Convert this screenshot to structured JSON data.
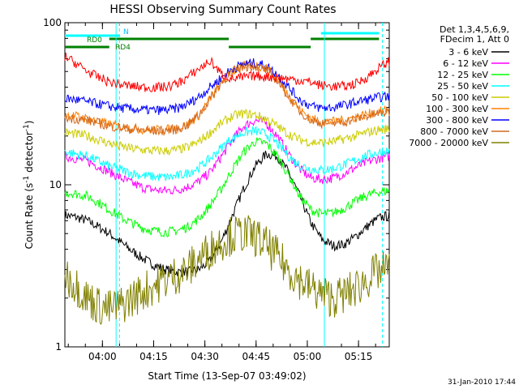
{
  "chart_data": {
    "type": "line",
    "title": "HESSI Observing Summary Count Rates",
    "xlabel": "Start Time (13-Sep-07 03:49:02)",
    "ylabel_main": "Count Rate (s",
    "ylabel_sup1": "-1",
    "ylabel_mid": " detector",
    "ylabel_sup2": "-1",
    "ylabel_end": ")",
    "yscale": "log",
    "ylim": [
      1,
      100
    ],
    "xlim_minutes": [
      0,
      95
    ],
    "x_ticks": [
      {
        "label": "04:00",
        "minute": 11
      },
      {
        "label": "04:15",
        "minute": 26
      },
      {
        "label": "04:30",
        "minute": 41
      },
      {
        "label": "04:45",
        "minute": 56
      },
      {
        "label": "05:00",
        "minute": 71
      },
      {
        "label": "05:15",
        "minute": 86
      }
    ],
    "y_tick_labels": [
      {
        "label": "1",
        "value": 1
      },
      {
        "label": "10",
        "value": 10
      },
      {
        "label": "100",
        "value": 100
      }
    ],
    "legend_header": [
      "Det 1,3,4,5,6,9,",
      "FDecim 1, Att 0"
    ],
    "legend_placement": "right",
    "series": [
      {
        "name": "3 - 6 keV",
        "color": "#000000",
        "values": [
          6.5,
          6.3,
          6.0,
          5.5,
          5.0,
          4.4,
          3.9,
          3.5,
          3.2,
          3.0,
          2.9,
          2.9,
          3.0,
          3.4,
          4.5,
          6.5,
          9.5,
          13.0,
          15.5,
          15.0,
          12.0,
          8.5,
          5.8,
          4.6,
          4.2,
          4.3,
          4.8,
          5.5,
          6.2,
          6.5
        ]
      },
      {
        "name": "6 - 12 keV",
        "color": "#ff00ff",
        "values": [
          15.0,
          14.5,
          14.0,
          13.0,
          12.0,
          11.0,
          10.2,
          9.6,
          9.3,
          9.2,
          9.3,
          9.7,
          10.5,
          12.0,
          15.0,
          19.0,
          23.0,
          25.0,
          24.0,
          20.0,
          15.5,
          12.5,
          11.0,
          10.8,
          11.0,
          11.8,
          12.8,
          13.8,
          14.5,
          15.0
        ]
      },
      {
        "name": "12 - 25 keV",
        "color": "#00ff00",
        "values": [
          9.0,
          8.8,
          8.5,
          7.8,
          7.0,
          6.3,
          5.8,
          5.4,
          5.2,
          5.1,
          5.2,
          5.5,
          6.2,
          7.5,
          9.5,
          12.5,
          16.0,
          18.5,
          18.0,
          15.0,
          11.5,
          8.5,
          7.0,
          6.6,
          6.7,
          7.2,
          7.9,
          8.6,
          9.0,
          9.2
        ]
      },
      {
        "name": "25 - 50 keV",
        "color": "#00ffff",
        "values": [
          16.0,
          15.5,
          15.0,
          14.0,
          13.0,
          12.3,
          11.8,
          11.4,
          11.2,
          11.1,
          11.3,
          11.8,
          12.8,
          14.5,
          17.0,
          19.5,
          21.0,
          21.5,
          20.5,
          18.0,
          15.0,
          13.2,
          12.5,
          12.3,
          12.6,
          13.3,
          14.2,
          15.2,
          15.8,
          16.2
        ]
      },
      {
        "name": "50 - 100 keV",
        "color": "#cccc00",
        "values": [
          21.0,
          20.5,
          20.0,
          19.0,
          18.0,
          17.2,
          16.7,
          16.4,
          16.2,
          16.2,
          16.4,
          17.0,
          18.5,
          21.0,
          24.0,
          26.5,
          27.5,
          27.0,
          25.5,
          23.0,
          20.5,
          19.0,
          18.3,
          18.2,
          18.5,
          19.2,
          20.0,
          21.0,
          21.8,
          22.2
        ]
      },
      {
        "name": "100 - 300 keV",
        "color": "#ff8000",
        "values": [
          27.0,
          26.5,
          25.5,
          24.5,
          23.5,
          22.8,
          22.3,
          22.0,
          21.8,
          21.9,
          22.2,
          23.5,
          27.0,
          34.0,
          43.0,
          50.0,
          54.0,
          55.0,
          52.0,
          45.0,
          36.0,
          29.0,
          25.5,
          24.5,
          24.5,
          25.2,
          26.2,
          27.2,
          28.2,
          29.0
        ]
      },
      {
        "name": "300 - 800 keV",
        "color": "#0000ff",
        "values": [
          34.0,
          33.5,
          32.5,
          31.5,
          30.5,
          29.8,
          29.3,
          29.0,
          28.8,
          28.9,
          29.5,
          31.5,
          35.0,
          40.0,
          46.0,
          52.0,
          55.5,
          56.5,
          54.0,
          48.0,
          40.0,
          33.5,
          30.5,
          29.8,
          30.0,
          31.0,
          32.3,
          33.5,
          34.5,
          35.2
        ]
      },
      {
        "name": "800 - 7000 keV",
        "color": "#d2691e",
        "values": [
          26.0,
          25.5,
          25.0,
          24.0,
          23.0,
          22.5,
          22.0,
          21.7,
          21.5,
          21.6,
          22.0,
          23.5,
          27.0,
          34.0,
          43.0,
          50.0,
          53.5,
          54.0,
          51.0,
          44.0,
          35.0,
          28.5,
          25.0,
          24.0,
          24.0,
          24.5,
          25.5,
          26.5,
          27.5,
          28.0
        ]
      },
      {
        "name": "7000 - 20000 keV",
        "color": "#808000",
        "values": [
          2.8,
          2.4,
          2.0,
          1.8,
          1.7,
          1.8,
          2.0,
          2.2,
          2.4,
          2.6,
          2.8,
          3.0,
          3.5,
          4.0,
          4.5,
          4.9,
          5.0,
          4.8,
          4.2,
          3.6,
          3.0,
          2.6,
          2.3,
          2.1,
          2.0,
          2.1,
          2.3,
          2.6,
          2.9,
          3.0
        ]
      },
      {
        "name": "red (unlabeled)",
        "color": "#ff0000",
        "values": [
          62.0,
          56.0,
          50.0,
          46.0,
          43.0,
          41.5,
          40.5,
          40.0,
          39.8,
          40.2,
          42.0,
          46.0,
          52.0,
          58.0,
          48.0,
          45.0,
          46.0,
          47.0,
          46.5,
          46.0,
          45.0,
          44.0,
          43.0,
          41.0,
          40.5,
          40.5,
          42.0,
          46.0,
          52.0,
          58.0
        ]
      }
    ],
    "series_x_minutes": [
      0,
      3.3,
      6.6,
      9.8,
      13.1,
      16.4,
      19.7,
      22.9,
      26.2,
      29.5,
      32.8,
      36.0,
      39.3,
      42.6,
      45.9,
      49.1,
      52.4,
      55.7,
      59.0,
      62.2,
      65.5,
      68.8,
      72.1,
      75.3,
      78.6,
      81.9,
      85.2,
      88.4,
      91.7,
      95.0
    ],
    "annotations": [
      {
        "label": "RD0",
        "color": "#008000"
      },
      {
        "label": "RD4",
        "color": "#008000"
      },
      {
        "label": "N",
        "color": "#00bfff"
      }
    ],
    "footer_date": "31-Jan-2010 17:44",
    "grid": false
  },
  "colors": {
    "axis": "#000000",
    "saa_bars": "#00ffff",
    "night_bars": "#008000"
  }
}
